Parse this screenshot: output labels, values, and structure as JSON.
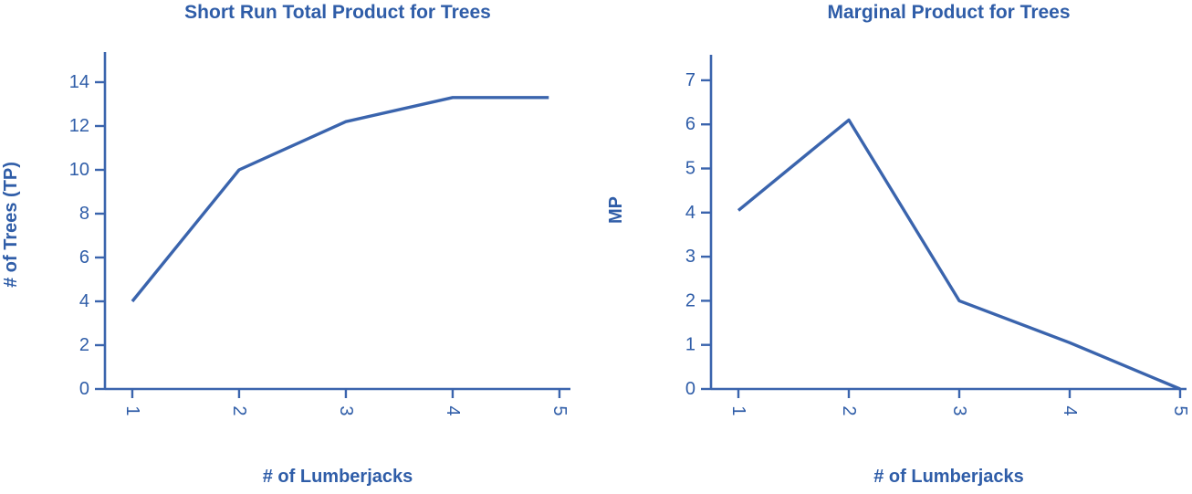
{
  "colors": {
    "ink": "#2f5da8",
    "axis": "#3a64ad",
    "line": "#3a64ad",
    "background": "#ffffff"
  },
  "chart_data": [
    {
      "type": "line",
      "title": "Short Run Total Product for Trees",
      "xlabel": "# of Lumberjacks",
      "ylabel": "# of Trees (TP)",
      "x": [
        1,
        2,
        3,
        4,
        4.9
      ],
      "values": [
        4,
        10,
        12.2,
        13.3,
        13.3
      ],
      "x_ticks": [
        "1",
        "2",
        "3",
        "4",
        "5"
      ],
      "y_ticks": [
        "0",
        "2",
        "4",
        "6",
        "8",
        "10",
        "12",
        "14"
      ],
      "xlim": [
        0.744,
        5.103
      ],
      "ylim": [
        0,
        15.375
      ],
      "x_tick_rotation_deg": 90,
      "grid": false,
      "legend": "none"
    },
    {
      "type": "line",
      "title": "Marginal Product for Trees",
      "xlabel": "# of Lumberjacks",
      "ylabel": "MP",
      "x": [
        1,
        2,
        3,
        4,
        5
      ],
      "values": [
        4.05,
        6.1,
        2,
        1.05,
        0
      ],
      "x_ticks": [
        "1",
        "2",
        "3",
        "4",
        "5"
      ],
      "y_ticks": [
        "0",
        "1",
        "2",
        "3",
        "4",
        "5",
        "6",
        "7"
      ],
      "xlim": [
        0.752,
        5.058
      ],
      "ylim": [
        0,
        7.578
      ],
      "x_tick_rotation_deg": 90,
      "grid": false,
      "legend": "none"
    }
  ]
}
